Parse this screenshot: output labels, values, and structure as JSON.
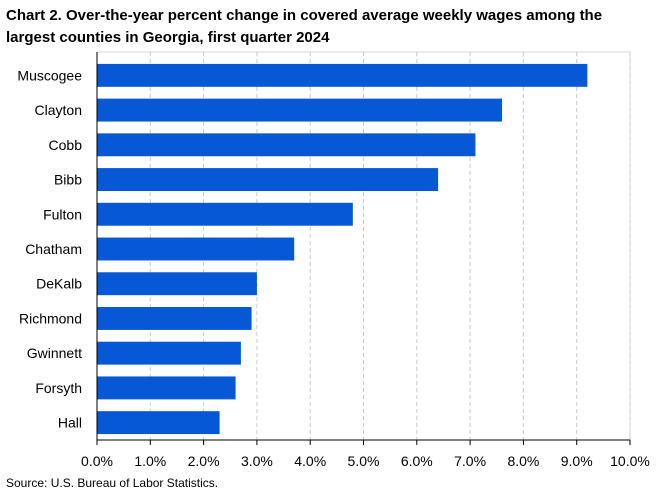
{
  "chart_title": "Chart 2. Over-the-year percent change in covered average weekly wages among the largest counties in Georgia, first quarter 2024",
  "source_note": "Source: U.S. Bureau of Labor Statistics.",
  "colors": {
    "bar": "#0758D4",
    "grid": "#C8C8C8",
    "axis": "#000000"
  },
  "chart_data": {
    "type": "bar",
    "orientation": "horizontal",
    "title": "Chart 2. Over-the-year percent change in covered average weekly wages among the largest counties in Georgia, first quarter 2024",
    "xlabel": "",
    "ylabel": "",
    "categories": [
      "Muscogee",
      "Clayton",
      "Cobb",
      "Bibb",
      "Fulton",
      "Chatham",
      "DeKalb",
      "Richmond",
      "Gwinnett",
      "Forsyth",
      "Hall"
    ],
    "values": [
      9.2,
      7.6,
      7.1,
      6.4,
      4.8,
      3.7,
      3.0,
      2.9,
      2.7,
      2.6,
      2.3
    ],
    "xlim": [
      0,
      10
    ],
    "x_ticks": [
      0,
      1,
      2,
      3,
      4,
      5,
      6,
      7,
      8,
      9,
      10
    ],
    "x_tick_labels": [
      "0.0%",
      "1.0%",
      "2.0%",
      "3.0%",
      "4.0%",
      "5.0%",
      "6.0%",
      "7.0%",
      "8.0%",
      "9.0%",
      "10.0%"
    ],
    "grid": "vertical dashed",
    "legend": "none"
  }
}
